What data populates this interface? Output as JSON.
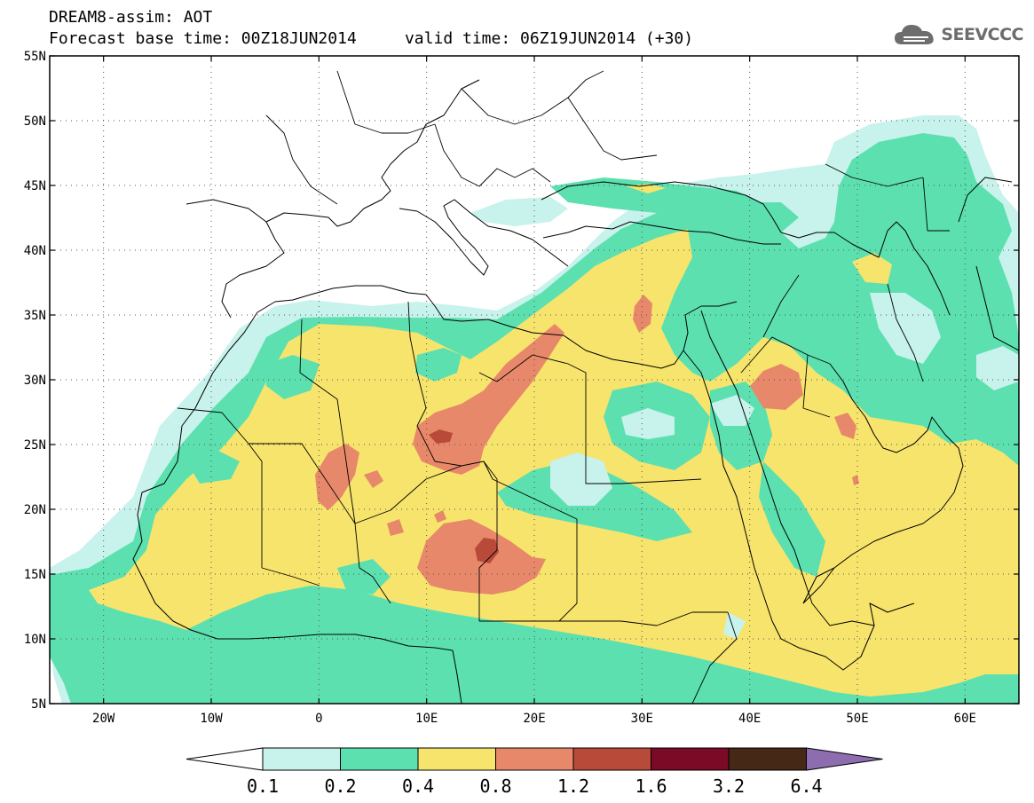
{
  "title": {
    "line1": "DREAM8-assim: AOT",
    "line2": "Forecast base time: 00Z18JUN2014     valid time: 06Z19JUN2014 (+30)"
  },
  "logo": {
    "text": "SEEVCCC",
    "icon": "cloud-icon"
  },
  "map": {
    "lon_range": [
      -25,
      65
    ],
    "lat_range": [
      5,
      55
    ],
    "lat_ticks": [
      {
        "value": 55,
        "label": "55N"
      },
      {
        "value": 50,
        "label": "50N"
      },
      {
        "value": 45,
        "label": "45N"
      },
      {
        "value": 40,
        "label": "40N"
      },
      {
        "value": 35,
        "label": "35N"
      },
      {
        "value": 30,
        "label": "30N"
      },
      {
        "value": 25,
        "label": "25N"
      },
      {
        "value": 20,
        "label": "20N"
      },
      {
        "value": 15,
        "label": "15N"
      },
      {
        "value": 10,
        "label": "10N"
      },
      {
        "value": 5,
        "label": "5N"
      }
    ],
    "lon_ticks": [
      {
        "value": -20,
        "label": "20W"
      },
      {
        "value": -10,
        "label": "10W"
      },
      {
        "value": 0,
        "label": "0"
      },
      {
        "value": 10,
        "label": "10E"
      },
      {
        "value": 20,
        "label": "20E"
      },
      {
        "value": 30,
        "label": "30E"
      },
      {
        "value": 40,
        "label": "40E"
      },
      {
        "value": 50,
        "label": "50E"
      },
      {
        "value": 60,
        "label": "60E"
      }
    ],
    "grid": "dotted",
    "colors": {
      "c01": "#c8f2ec",
      "c02": "#5ce0b0",
      "c04": "#f7e46c",
      "c08": "#e8886a",
      "c12": "#b84a3a",
      "c16": "#7a0a26",
      "c32": "#452916",
      "c64": "#8d6cb0"
    }
  },
  "colorbar": {
    "labels": [
      "0.1",
      "0.2",
      "0.4",
      "0.8",
      "1.2",
      "1.6",
      "3.2",
      "6.4"
    ],
    "colors": [
      "#ffffff",
      "#c8f2ec",
      "#5ce0b0",
      "#f7e46c",
      "#e8886a",
      "#b84a3a",
      "#7a0a26",
      "#452916",
      "#8d6cb0"
    ]
  }
}
